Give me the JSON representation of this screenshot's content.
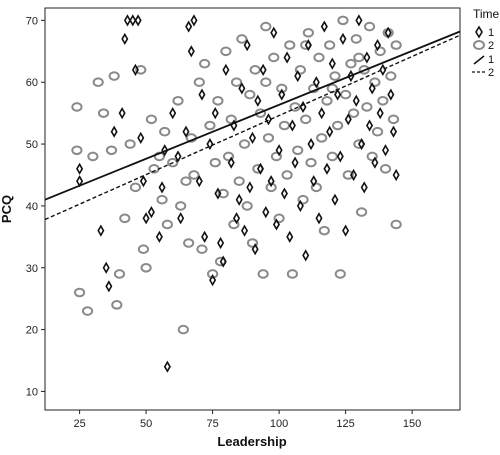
{
  "chart_data": {
    "type": "scatter",
    "xlabel": "Leadership",
    "ylabel": "PCQ",
    "xlim": [
      12,
      168
    ],
    "ylim": [
      7,
      72
    ],
    "xticks": [
      25,
      50,
      75,
      100,
      125,
      150
    ],
    "yticks": [
      10,
      20,
      30,
      40,
      50,
      60,
      70
    ],
    "legend": {
      "title": "Time",
      "placement": "top-right",
      "entries": [
        {
          "label": "1",
          "kind": "marker",
          "marker": "diamond"
        },
        {
          "label": "2",
          "kind": "marker",
          "marker": "circle"
        },
        {
          "label": "1",
          "kind": "line",
          "dash": "solid"
        },
        {
          "label": "2",
          "kind": "line",
          "dash": "dashed"
        }
      ]
    },
    "series": [
      {
        "name": "1",
        "marker": "diamond",
        "color": "#111111",
        "fit_line": {
          "x": [
            12,
            168
          ],
          "y": [
            41.0,
            68.2
          ]
        },
        "points": [
          [
            25,
            46
          ],
          [
            25,
            44
          ],
          [
            33,
            36
          ],
          [
            35,
            30
          ],
          [
            36,
            27
          ],
          [
            38,
            52
          ],
          [
            41,
            55
          ],
          [
            42,
            67
          ],
          [
            43,
            70
          ],
          [
            45,
            70
          ],
          [
            47,
            70
          ],
          [
            46,
            62
          ],
          [
            48,
            51
          ],
          [
            49,
            44
          ],
          [
            50,
            38
          ],
          [
            52,
            39
          ],
          [
            55,
            35
          ],
          [
            56,
            43
          ],
          [
            57,
            49
          ],
          [
            58,
            14
          ],
          [
            60,
            55
          ],
          [
            62,
            48
          ],
          [
            63,
            38
          ],
          [
            65,
            52
          ],
          [
            66,
            69
          ],
          [
            67,
            65
          ],
          [
            68,
            70
          ],
          [
            70,
            44
          ],
          [
            71,
            58
          ],
          [
            72,
            35
          ],
          [
            74,
            50
          ],
          [
            75,
            28
          ],
          [
            76,
            55
          ],
          [
            77,
            42
          ],
          [
            78,
            34
          ],
          [
            79,
            31
          ],
          [
            80,
            62
          ],
          [
            82,
            47
          ],
          [
            83,
            53
          ],
          [
            84,
            38
          ],
          [
            85,
            41
          ],
          [
            86,
            59
          ],
          [
            87,
            36
          ],
          [
            88,
            66
          ],
          [
            89,
            43
          ],
          [
            90,
            51
          ],
          [
            91,
            33
          ],
          [
            92,
            57
          ],
          [
            93,
            46
          ],
          [
            94,
            62
          ],
          [
            95,
            39
          ],
          [
            96,
            54
          ],
          [
            97,
            44
          ],
          [
            98,
            68
          ],
          [
            99,
            37
          ],
          [
            100,
            49
          ],
          [
            101,
            58
          ],
          [
            102,
            42
          ],
          [
            103,
            64
          ],
          [
            104,
            35
          ],
          [
            105,
            53
          ],
          [
            106,
            47
          ],
          [
            107,
            61
          ],
          [
            108,
            40
          ],
          [
            109,
            56
          ],
          [
            110,
            32
          ],
          [
            111,
            66
          ],
          [
            112,
            50
          ],
          [
            113,
            44
          ],
          [
            114,
            60
          ],
          [
            115,
            38
          ],
          [
            116,
            55
          ],
          [
            117,
            69
          ],
          [
            118,
            46
          ],
          [
            119,
            52
          ],
          [
            120,
            63
          ],
          [
            121,
            41
          ],
          [
            122,
            58
          ],
          [
            123,
            48
          ],
          [
            124,
            67
          ],
          [
            125,
            36
          ],
          [
            126,
            54
          ],
          [
            127,
            61
          ],
          [
            128,
            45
          ],
          [
            129,
            57
          ],
          [
            130,
            70
          ],
          [
            131,
            50
          ],
          [
            132,
            43
          ],
          [
            133,
            64
          ],
          [
            134,
            53
          ],
          [
            135,
            59
          ],
          [
            136,
            47
          ],
          [
            137,
            66
          ],
          [
            138,
            55
          ],
          [
            139,
            62
          ],
          [
            140,
            49
          ],
          [
            141,
            68
          ],
          [
            142,
            58
          ],
          [
            143,
            52
          ],
          [
            144,
            45
          ]
        ]
      },
      {
        "name": "2",
        "marker": "circle",
        "color": "#8a8a8a",
        "fit_line": {
          "x": [
            12,
            168
          ],
          "y": [
            37.8,
            67.6
          ]
        },
        "points": [
          [
            24,
            56
          ],
          [
            24,
            49
          ],
          [
            25,
            26
          ],
          [
            28,
            23
          ],
          [
            30,
            48
          ],
          [
            32,
            60
          ],
          [
            34,
            55
          ],
          [
            37,
            49
          ],
          [
            38,
            61
          ],
          [
            39,
            24
          ],
          [
            40,
            29
          ],
          [
            42,
            38
          ],
          [
            44,
            50
          ],
          [
            46,
            43
          ],
          [
            48,
            62
          ],
          [
            49,
            33
          ],
          [
            50,
            30
          ],
          [
            52,
            54
          ],
          [
            53,
            46
          ],
          [
            55,
            48
          ],
          [
            56,
            41
          ],
          [
            57,
            52
          ],
          [
            58,
            37
          ],
          [
            60,
            47
          ],
          [
            62,
            57
          ],
          [
            63,
            40
          ],
          [
            64,
            20
          ],
          [
            65,
            44
          ],
          [
            66,
            34
          ],
          [
            67,
            51
          ],
          [
            68,
            45
          ],
          [
            70,
            60
          ],
          [
            71,
            33
          ],
          [
            72,
            63
          ],
          [
            74,
            53
          ],
          [
            75,
            29
          ],
          [
            76,
            47
          ],
          [
            77,
            57
          ],
          [
            78,
            31
          ],
          [
            79,
            42
          ],
          [
            80,
            65
          ],
          [
            81,
            48
          ],
          [
            82,
            54
          ],
          [
            83,
            37
          ],
          [
            84,
            60
          ],
          [
            85,
            44
          ],
          [
            86,
            67
          ],
          [
            87,
            50
          ],
          [
            88,
            40
          ],
          [
            89,
            58
          ],
          [
            90,
            34
          ],
          [
            91,
            62
          ],
          [
            92,
            46
          ],
          [
            93,
            55
          ],
          [
            94,
            29
          ],
          [
            95,
            69
          ],
          [
            96,
            51
          ],
          [
            97,
            43
          ],
          [
            98,
            64
          ],
          [
            99,
            48
          ],
          [
            100,
            38
          ],
          [
            101,
            59
          ],
          [
            102,
            53
          ],
          [
            103,
            45
          ],
          [
            104,
            66
          ],
          [
            105,
            29
          ],
          [
            106,
            56
          ],
          [
            107,
            49
          ],
          [
            108,
            62
          ],
          [
            109,
            41
          ],
          [
            110,
            54
          ],
          [
            111,
            68
          ],
          [
            112,
            47
          ],
          [
            113,
            59
          ],
          [
            114,
            43
          ],
          [
            115,
            64
          ],
          [
            116,
            51
          ],
          [
            117,
            36
          ],
          [
            118,
            57
          ],
          [
            119,
            66
          ],
          [
            120,
            48
          ],
          [
            121,
            61
          ],
          [
            122,
            53
          ],
          [
            123,
            29
          ],
          [
            124,
            70
          ],
          [
            125,
            58
          ],
          [
            126,
            45
          ],
          [
            127,
            63
          ],
          [
            128,
            55
          ],
          [
            129,
            67
          ],
          [
            130,
            50
          ],
          [
            131,
            39
          ],
          [
            132,
            62
          ],
          [
            133,
            56
          ],
          [
            134,
            69
          ],
          [
            135,
            48
          ],
          [
            136,
            60
          ],
          [
            137,
            52
          ],
          [
            138,
            65
          ],
          [
            139,
            57
          ],
          [
            140,
            46
          ],
          [
            141,
            68
          ],
          [
            142,
            61
          ],
          [
            143,
            54
          ],
          [
            144,
            37
          ],
          [
            144,
            66
          ],
          [
            110,
            66
          ],
          [
            120,
            59
          ],
          [
            130,
            64
          ],
          [
            95,
            60
          ]
        ]
      }
    ]
  }
}
